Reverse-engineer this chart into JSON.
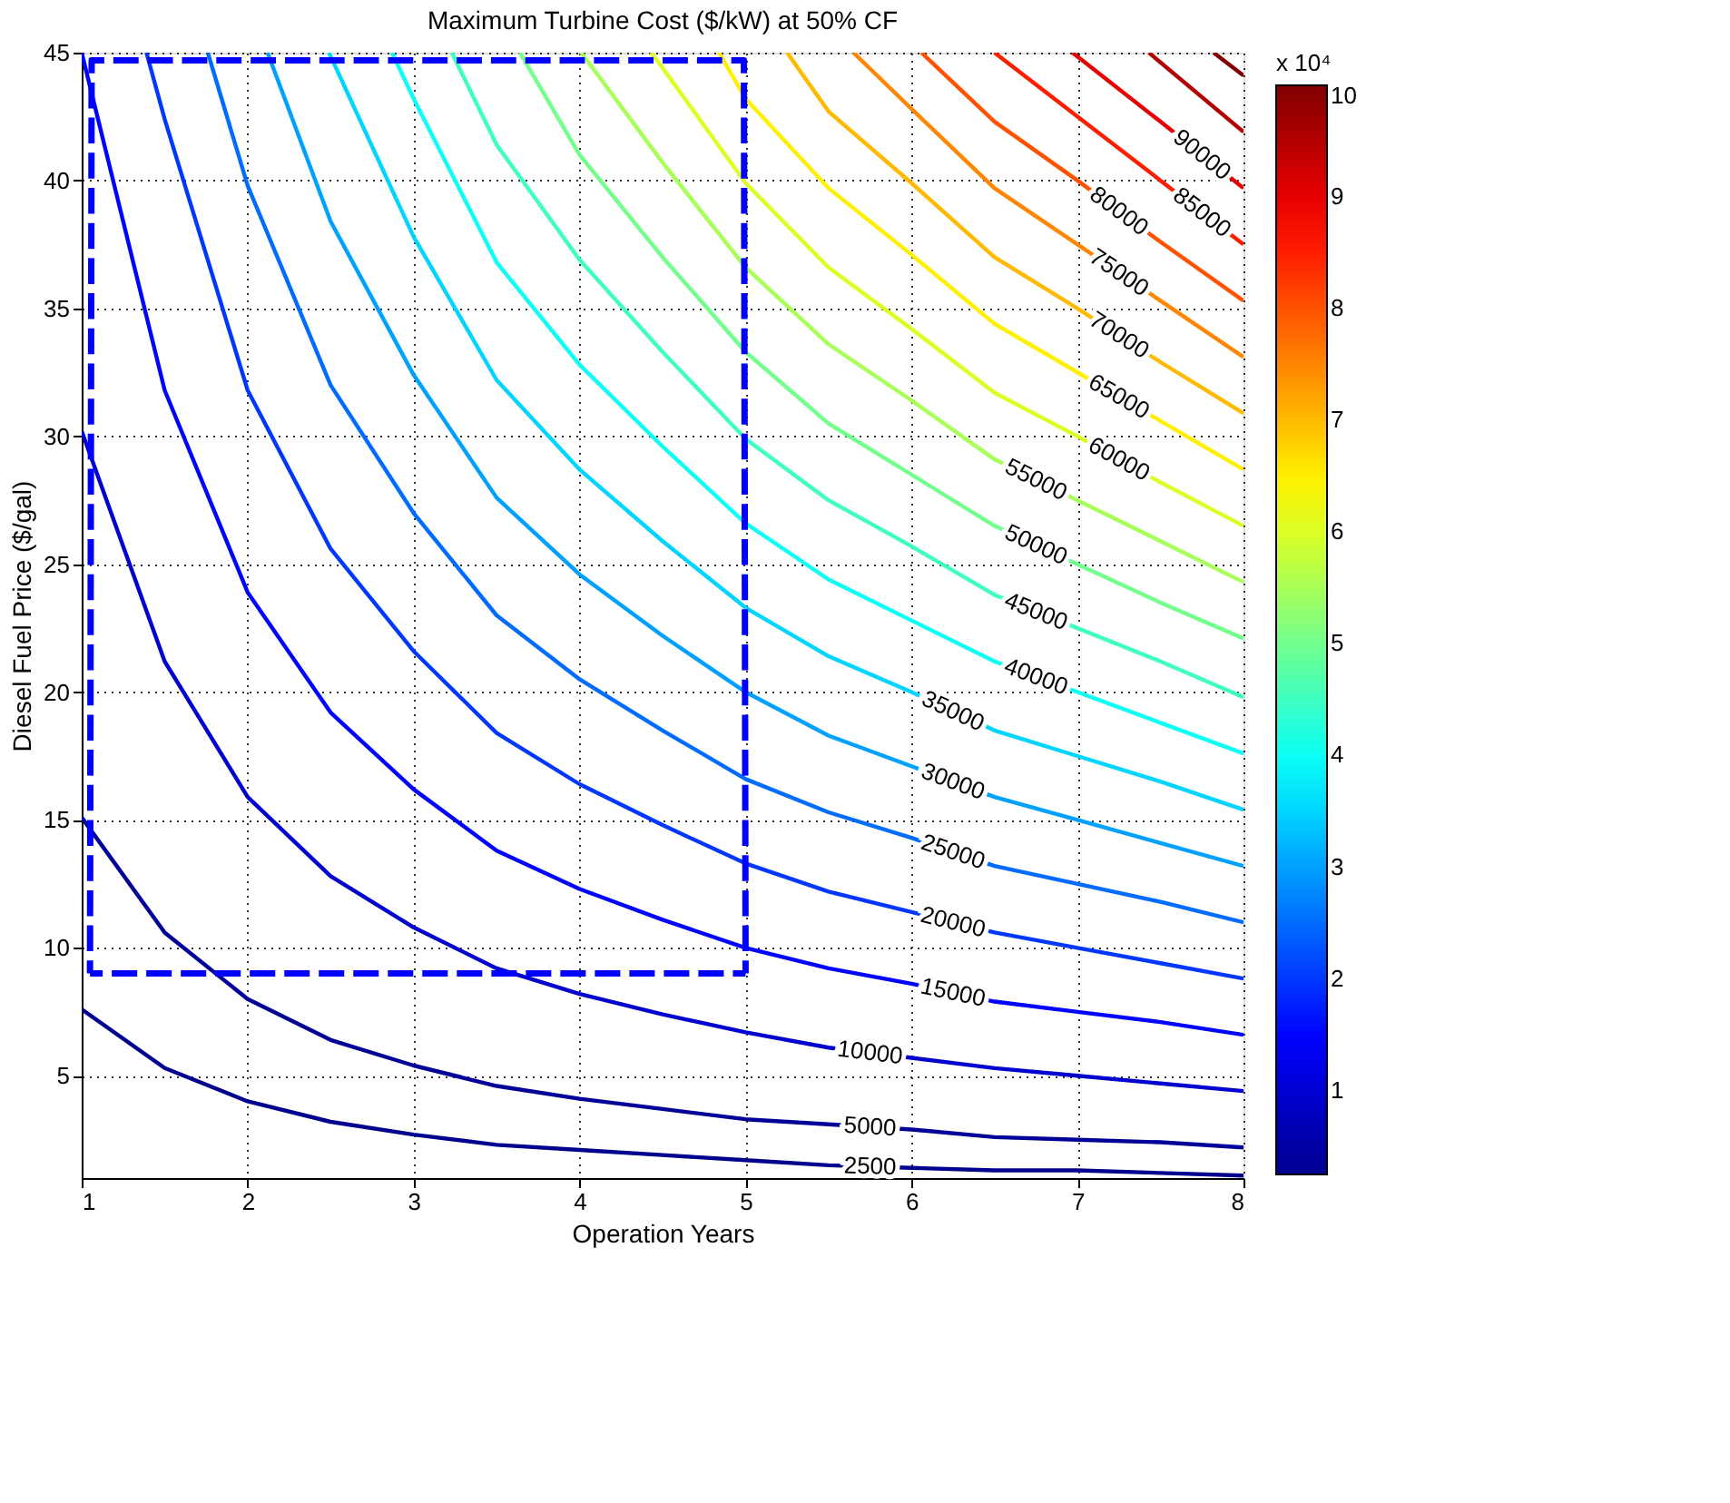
{
  "chart_data": {
    "type": "line",
    "title": "Maximum Turbine Cost ($/kW) at 50% CF",
    "xlabel": "Operation Years",
    "ylabel": "Diesel Fuel Price ($/gal)",
    "clabel": "x 10⁴",
    "xlim": [
      1,
      8
    ],
    "ylim": [
      1,
      45
    ],
    "xticks": [
      1,
      2,
      3,
      4,
      5,
      6,
      7,
      8
    ],
    "yticks": [
      5,
      10,
      15,
      20,
      25,
      30,
      35,
      40,
      45
    ],
    "grid": true,
    "marker": "none",
    "line_style": "solid",
    "clim": [
      0.25,
      10
    ],
    "cticks": [
      1,
      2,
      3,
      4,
      5,
      6,
      7,
      8,
      9,
      10
    ],
    "series": [
      {
        "name": "2500",
        "color": "#00008f",
        "x": [
          1,
          1.5,
          2,
          2.5,
          3,
          3.5,
          4,
          4.5,
          5,
          5.5,
          6,
          6.5,
          7,
          7.5,
          8
        ],
        "values": [
          7.6,
          5.3,
          4.0,
          3.2,
          2.7,
          2.3,
          2.1,
          1.9,
          1.7,
          1.5,
          1.4,
          1.3,
          1.3,
          1.2,
          1.1
        ]
      },
      {
        "name": "5000",
        "color": "#000099",
        "x": [
          1,
          1.5,
          2,
          2.5,
          3,
          3.5,
          4,
          4.5,
          5,
          5.5,
          6,
          6.5,
          7,
          7.5,
          8
        ],
        "values": [
          15.1,
          10.6,
          8.0,
          6.4,
          5.4,
          4.6,
          4.1,
          3.7,
          3.3,
          3.1,
          2.9,
          2.6,
          2.5,
          2.4,
          2.2
        ]
      },
      {
        "name": "10000",
        "color": "#0000cf",
        "x": [
          1,
          1.5,
          2,
          2.5,
          3,
          3.5,
          4,
          4.5,
          5,
          5.5,
          6,
          6.5,
          7,
          7.5,
          8
        ],
        "values": [
          30.2,
          21.2,
          15.9,
          12.8,
          10.8,
          9.2,
          8.2,
          7.4,
          6.7,
          6.1,
          5.7,
          5.3,
          5.0,
          4.7,
          4.4
        ]
      },
      {
        "name": "15000",
        "color": "#0002ff",
        "x": [
          1,
          1.5,
          2,
          2.5,
          3,
          3.5,
          4,
          4.5,
          5,
          5.5,
          6,
          6.5,
          7,
          7.5,
          8
        ],
        "values": [
          45,
          31.8,
          23.9,
          19.2,
          16.2,
          13.8,
          12.3,
          11.1,
          10.0,
          9.2,
          8.6,
          7.9,
          7.5,
          7.1,
          6.6
        ]
      },
      {
        "name": "20000",
        "color": "#0037ff",
        "x": [
          1.39,
          1.5,
          2,
          2.5,
          3,
          3.5,
          4,
          4.5,
          5,
          5.5,
          6,
          6.5,
          7,
          7.5,
          8
        ],
        "values": [
          45,
          42.4,
          31.8,
          25.6,
          21.6,
          18.4,
          16.4,
          14.8,
          13.3,
          12.2,
          11.4,
          10.6,
          10.0,
          9.4,
          8.8
        ]
      },
      {
        "name": "25000",
        "color": "#006cff",
        "x": [
          1.76,
          2,
          2.5,
          3,
          3.5,
          4,
          4.5,
          5,
          5.5,
          6,
          6.5,
          7,
          7.5,
          8
        ],
        "values": [
          45,
          39.8,
          32.0,
          27.0,
          23.0,
          20.5,
          18.5,
          16.6,
          15.3,
          14.3,
          13.2,
          12.5,
          11.8,
          11.0
        ]
      },
      {
        "name": "30000",
        "color": "#00a0ff",
        "x": [
          2.12,
          2.5,
          3,
          3.5,
          4,
          4.5,
          5,
          5.5,
          6,
          6.5,
          7,
          7.5,
          8
        ],
        "values": [
          45,
          38.4,
          32.4,
          27.6,
          24.6,
          22.2,
          20.0,
          18.3,
          17.1,
          15.9,
          15.0,
          14.1,
          13.2
        ]
      },
      {
        "name": "35000",
        "color": "#00d5ff",
        "x": [
          2.49,
          3,
          3.5,
          4,
          4.5,
          5,
          5.5,
          6,
          6.5,
          7,
          7.5,
          8
        ],
        "values": [
          45,
          37.8,
          32.2,
          28.7,
          25.9,
          23.3,
          21.4,
          20.0,
          18.5,
          17.5,
          16.5,
          15.4
        ]
      },
      {
        "name": "40000",
        "color": "#0afff5",
        "x": [
          2.87,
          3,
          3.5,
          4,
          4.5,
          5,
          5.5,
          6,
          6.5,
          7,
          7.5,
          8
        ],
        "values": [
          45,
          43.2,
          36.8,
          32.8,
          29.6,
          26.6,
          24.4,
          22.8,
          21.2,
          20.0,
          18.8,
          17.6
        ]
      },
      {
        "name": "45000",
        "color": "#3effc1",
        "x": [
          3.23,
          3.5,
          4,
          4.5,
          5,
          5.5,
          6,
          6.5,
          7,
          7.5,
          8
        ],
        "values": [
          45,
          41.4,
          36.9,
          33.3,
          29.9,
          27.5,
          25.7,
          23.8,
          22.5,
          21.2,
          19.8
        ]
      },
      {
        "name": "50000",
        "color": "#72ff8c",
        "x": [
          3.64,
          4,
          4.5,
          5,
          5.5,
          6,
          6.5,
          7,
          7.5,
          8
        ],
        "values": [
          45,
          41.0,
          37.0,
          33.3,
          30.5,
          28.5,
          26.5,
          25.0,
          23.5,
          22.1
        ]
      },
      {
        "name": "55000",
        "color": "#a7ff58",
        "x": [
          4.01,
          4.5,
          5,
          5.5,
          6,
          6.5,
          7,
          7.5,
          8
        ],
        "values": [
          45,
          40.7,
          36.6,
          33.6,
          31.4,
          29.1,
          27.5,
          25.9,
          24.3
        ]
      },
      {
        "name": "60000",
        "color": "#dbff24",
        "x": [
          4.43,
          4.5,
          5,
          5.5,
          6,
          6.5,
          7,
          7.5,
          8
        ],
        "values": [
          45,
          44.4,
          39.9,
          36.6,
          34.2,
          31.7,
          30.0,
          28.2,
          26.5
        ]
      },
      {
        "name": "65000",
        "color": "#ffef00",
        "x": [
          4.84,
          5,
          5.5,
          6,
          6.5,
          7,
          7.5,
          8
        ],
        "values": [
          45,
          43.2,
          39.7,
          37.1,
          34.4,
          32.5,
          30.6,
          28.7
        ]
      },
      {
        "name": "70000",
        "color": "#ffba00",
        "x": [
          5.25,
          5.5,
          6,
          6.5,
          7,
          7.5,
          8
        ],
        "values": [
          45,
          42.7,
          39.9,
          37.0,
          35.0,
          32.9,
          30.9
        ]
      },
      {
        "name": "75000",
        "color": "#ff8600",
        "x": [
          5.65,
          6,
          6.5,
          7,
          7.5,
          8
        ],
        "values": [
          45,
          42.8,
          39.7,
          37.5,
          35.3,
          33.1
        ]
      },
      {
        "name": "80000",
        "color": "#ff5100",
        "x": [
          6.06,
          6.5,
          7,
          7.5,
          8
        ],
        "values": [
          45,
          42.3,
          40.0,
          37.6,
          35.3
        ]
      },
      {
        "name": "85000",
        "color": "#ff1d00",
        "x": [
          6.5,
          7,
          7.5,
          8
        ],
        "values": [
          45,
          42.5,
          40.0,
          37.5
        ]
      },
      {
        "name": "90000",
        "color": "#e80000",
        "x": [
          6.97,
          7.5,
          8
        ],
        "values": [
          45,
          42.3,
          39.7
        ]
      },
      {
        "color": "#b40000",
        "x": [
          7.43,
          8
        ],
        "values": [
          45,
          41.9
        ]
      },
      {
        "color": "#800000",
        "x": [
          7.82,
          8
        ],
        "values": [
          45,
          44.1
        ]
      },
      {
        "color": "#0000ff",
        "line_style": "dashed",
        "x": [
          1.05,
          1.06,
          4.99,
          5
        ],
        "values": [
          9,
          44.7,
          44.7,
          9
        ]
      },
      {
        "color": "#0000ff",
        "line_style": "dashed",
        "x": [
          1.05,
          5
        ],
        "values": [
          9,
          9
        ]
      }
    ]
  }
}
